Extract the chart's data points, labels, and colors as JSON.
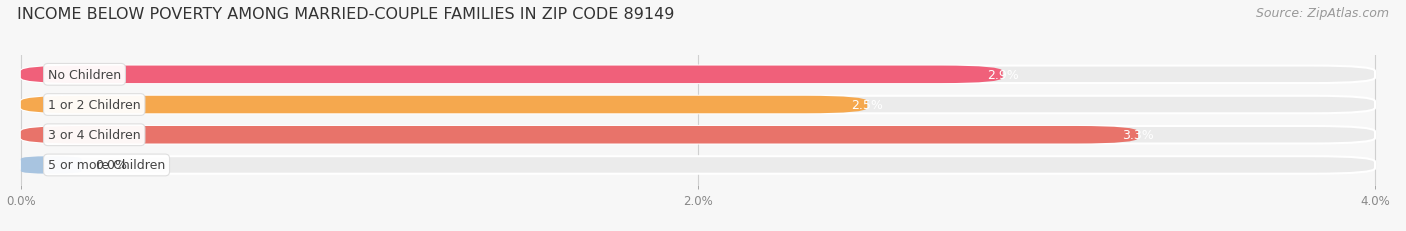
{
  "title": "INCOME BELOW POVERTY AMONG MARRIED-COUPLE FAMILIES IN ZIP CODE 89149",
  "source": "Source: ZipAtlas.com",
  "categories": [
    "No Children",
    "1 or 2 Children",
    "3 or 4 Children",
    "5 or more Children"
  ],
  "values": [
    2.9,
    2.5,
    3.3,
    0.0
  ],
  "bar_colors": [
    "#F0607A",
    "#F5A84E",
    "#E8736A",
    "#A8C4E0"
  ],
  "bar_bg_color": "#EBEBEB",
  "xlim_max": 4.0,
  "xtick_labels": [
    "0.0%",
    "2.0%",
    "4.0%"
  ],
  "xtick_vals": [
    0.0,
    2.0,
    4.0
  ],
  "title_fontsize": 11.5,
  "source_fontsize": 9,
  "label_fontsize": 9,
  "value_fontsize": 9,
  "bg_color": "#f7f7f7",
  "bar_height": 0.58,
  "bar_label_color": "#ffffff",
  "grid_color": "#d0d0d0",
  "label_dot_colors": [
    "#F0607A",
    "#F5A84E",
    "#E8736A",
    "#A8C4E0"
  ]
}
